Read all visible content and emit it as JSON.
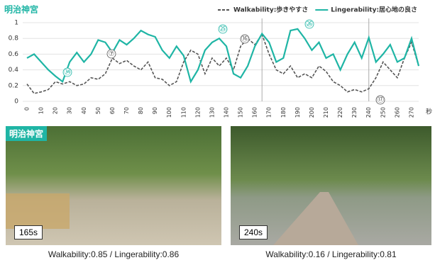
{
  "chart_data": {
    "type": "line",
    "title": "明治神宮",
    "x_unit": "秒",
    "x": [
      0,
      5,
      10,
      15,
      20,
      25,
      30,
      35,
      40,
      45,
      50,
      55,
      60,
      65,
      70,
      75,
      80,
      85,
      90,
      95,
      100,
      105,
      110,
      115,
      120,
      125,
      130,
      135,
      140,
      145,
      150,
      155,
      160,
      165,
      170,
      175,
      180,
      185,
      190,
      195,
      200,
      205,
      210,
      215,
      220,
      225,
      230,
      235,
      240,
      245,
      250,
      255,
      260,
      265,
      270,
      275
    ],
    "series": [
      {
        "name": "Walkability:歩きやすさ",
        "color": "#555555",
        "dashed": true,
        "values": [
          0.22,
          0.1,
          0.12,
          0.15,
          0.25,
          0.22,
          0.25,
          0.2,
          0.22,
          0.3,
          0.28,
          0.35,
          0.55,
          0.48,
          0.52,
          0.45,
          0.4,
          0.5,
          0.3,
          0.28,
          0.2,
          0.25,
          0.5,
          0.65,
          0.6,
          0.35,
          0.55,
          0.45,
          0.55,
          0.4,
          0.7,
          0.8,
          0.72,
          0.85,
          0.6,
          0.4,
          0.35,
          0.45,
          0.3,
          0.35,
          0.3,
          0.45,
          0.38,
          0.25,
          0.2,
          0.12,
          0.15,
          0.12,
          0.16,
          0.3,
          0.5,
          0.4,
          0.3,
          0.55,
          0.75,
          0.45
        ]
      },
      {
        "name": "Lingerability:居心地の良さ",
        "color": "#1fb5a5",
        "dashed": false,
        "values": [
          0.55,
          0.6,
          0.5,
          0.4,
          0.32,
          0.25,
          0.5,
          0.62,
          0.5,
          0.6,
          0.78,
          0.75,
          0.62,
          0.78,
          0.72,
          0.8,
          0.9,
          0.85,
          0.82,
          0.65,
          0.55,
          0.7,
          0.58,
          0.25,
          0.4,
          0.65,
          0.75,
          0.8,
          0.7,
          0.35,
          0.3,
          0.45,
          0.7,
          0.86,
          0.75,
          0.5,
          0.55,
          0.9,
          0.92,
          0.8,
          0.65,
          0.75,
          0.55,
          0.6,
          0.4,
          0.6,
          0.75,
          0.55,
          0.81,
          0.5,
          0.6,
          0.72,
          0.5,
          0.55,
          0.8,
          0.45
        ]
      }
    ],
    "xlim": [
      0,
      275
    ],
    "xticks": [
      0,
      10,
      20,
      30,
      40,
      50,
      60,
      70,
      80,
      90,
      100,
      110,
      120,
      130,
      140,
      150,
      160,
      170,
      180,
      190,
      200,
      210,
      220,
      230,
      240,
      250,
      260,
      270
    ],
    "ylim": [
      0,
      1
    ],
    "yticks": [
      0,
      0.2,
      0.4,
      0.6,
      0.8,
      1
    ],
    "grid": true,
    "legend": "top-right",
    "highlight_x": [
      165,
      240
    ],
    "annotations": [
      "⑦",
      "⑯",
      "⑰",
      "㉕",
      "㉞",
      "㉖"
    ]
  },
  "photos": [
    {
      "place": "明治神宮",
      "time_label": "165s",
      "caption": "Walkability:0.85  /  Lingerability:0.86"
    },
    {
      "time_label": "240s",
      "caption": "Walkability:0.16  /  Lingerability:0.81"
    }
  ]
}
